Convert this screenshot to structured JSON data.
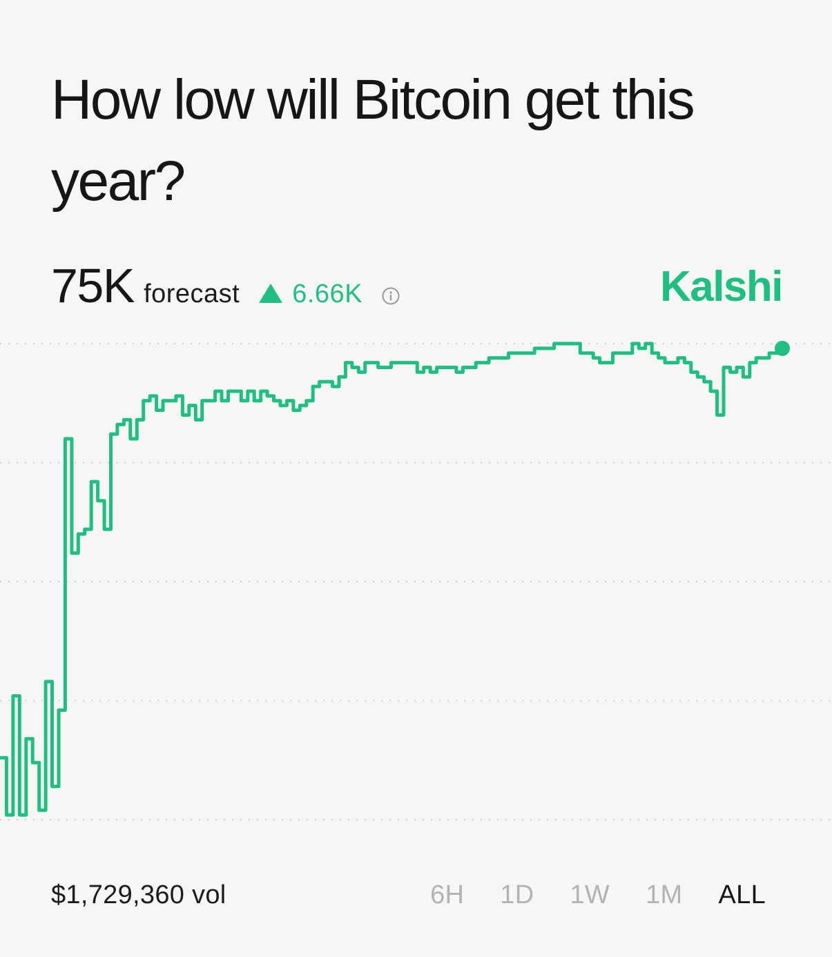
{
  "title": "How low will Bitcoin get this year?",
  "forecast": {
    "value": "75K",
    "label": "forecast",
    "change": "6.66K"
  },
  "brand": "Kalshi",
  "volume": "$1,729,360 vol",
  "range_tabs": [
    {
      "label": "6H",
      "active": false
    },
    {
      "label": "1D",
      "active": false
    },
    {
      "label": "1W",
      "active": false
    },
    {
      "label": "1M",
      "active": false
    },
    {
      "label": "ALL",
      "active": true
    }
  ],
  "colors": {
    "accent": "#1fbf82",
    "text": "#161616",
    "muted": "#b3b3b3",
    "grid": "#cfcfcf",
    "background": "#f6f6f6"
  },
  "chart_data": {
    "type": "line",
    "title": "",
    "xlabel": "",
    "ylabel": "",
    "grid": true,
    "ylim": [
      0,
      100
    ],
    "x": [
      0,
      1,
      2,
      3,
      4,
      5,
      6,
      7,
      8,
      9,
      10,
      11,
      12,
      13,
      14,
      15,
      16,
      17,
      18,
      19,
      20,
      21,
      22,
      23,
      24,
      25,
      26,
      27,
      28,
      29,
      30,
      31,
      32,
      33,
      34,
      35,
      36,
      37,
      38,
      39,
      40,
      41,
      42,
      43,
      44,
      45,
      46,
      47,
      48,
      49,
      50,
      51,
      52,
      53,
      54,
      55,
      56,
      57,
      58,
      59,
      60,
      61,
      62,
      63,
      64,
      65,
      66,
      67,
      68,
      69,
      70,
      71,
      72,
      73,
      74,
      75,
      76,
      77,
      78,
      79,
      80,
      81,
      82,
      83,
      84,
      85,
      86,
      87,
      88,
      89,
      90,
      91,
      92,
      93,
      94,
      95,
      96,
      97,
      98,
      99,
      100,
      101,
      102,
      103,
      104,
      105,
      106,
      107,
      108,
      109,
      110,
      111,
      112,
      113,
      114,
      115,
      116,
      117,
      118,
      119,
      120
    ],
    "series": [
      {
        "values": [
          13,
          1,
          26,
          1,
          17,
          12,
          2,
          29,
          7,
          23,
          80,
          56,
          60,
          61,
          71,
          67,
          61,
          81,
          83,
          84,
          80,
          84,
          88,
          89,
          86,
          88,
          88,
          89,
          85,
          87,
          84,
          88,
          88,
          90,
          88,
          90,
          90,
          88,
          90,
          88,
          90,
          89,
          88,
          87,
          88,
          86,
          87,
          88,
          91,
          92,
          92,
          91,
          93,
          96,
          95,
          94,
          96,
          96,
          95,
          95,
          96,
          96,
          96,
          96,
          94,
          95,
          94,
          95,
          95,
          95,
          94,
          95,
          95,
          96,
          96,
          97,
          97,
          97,
          98,
          98,
          98,
          98,
          99,
          99,
          99,
          100,
          100,
          100,
          100,
          98,
          98,
          97,
          96,
          96,
          98,
          98,
          98,
          100,
          99,
          100,
          98,
          97,
          96,
          96,
          97,
          96,
          94,
          93,
          92,
          90,
          85,
          95,
          94,
          95,
          93,
          96,
          97,
          97,
          98,
          98,
          99
        ]
      }
    ]
  }
}
